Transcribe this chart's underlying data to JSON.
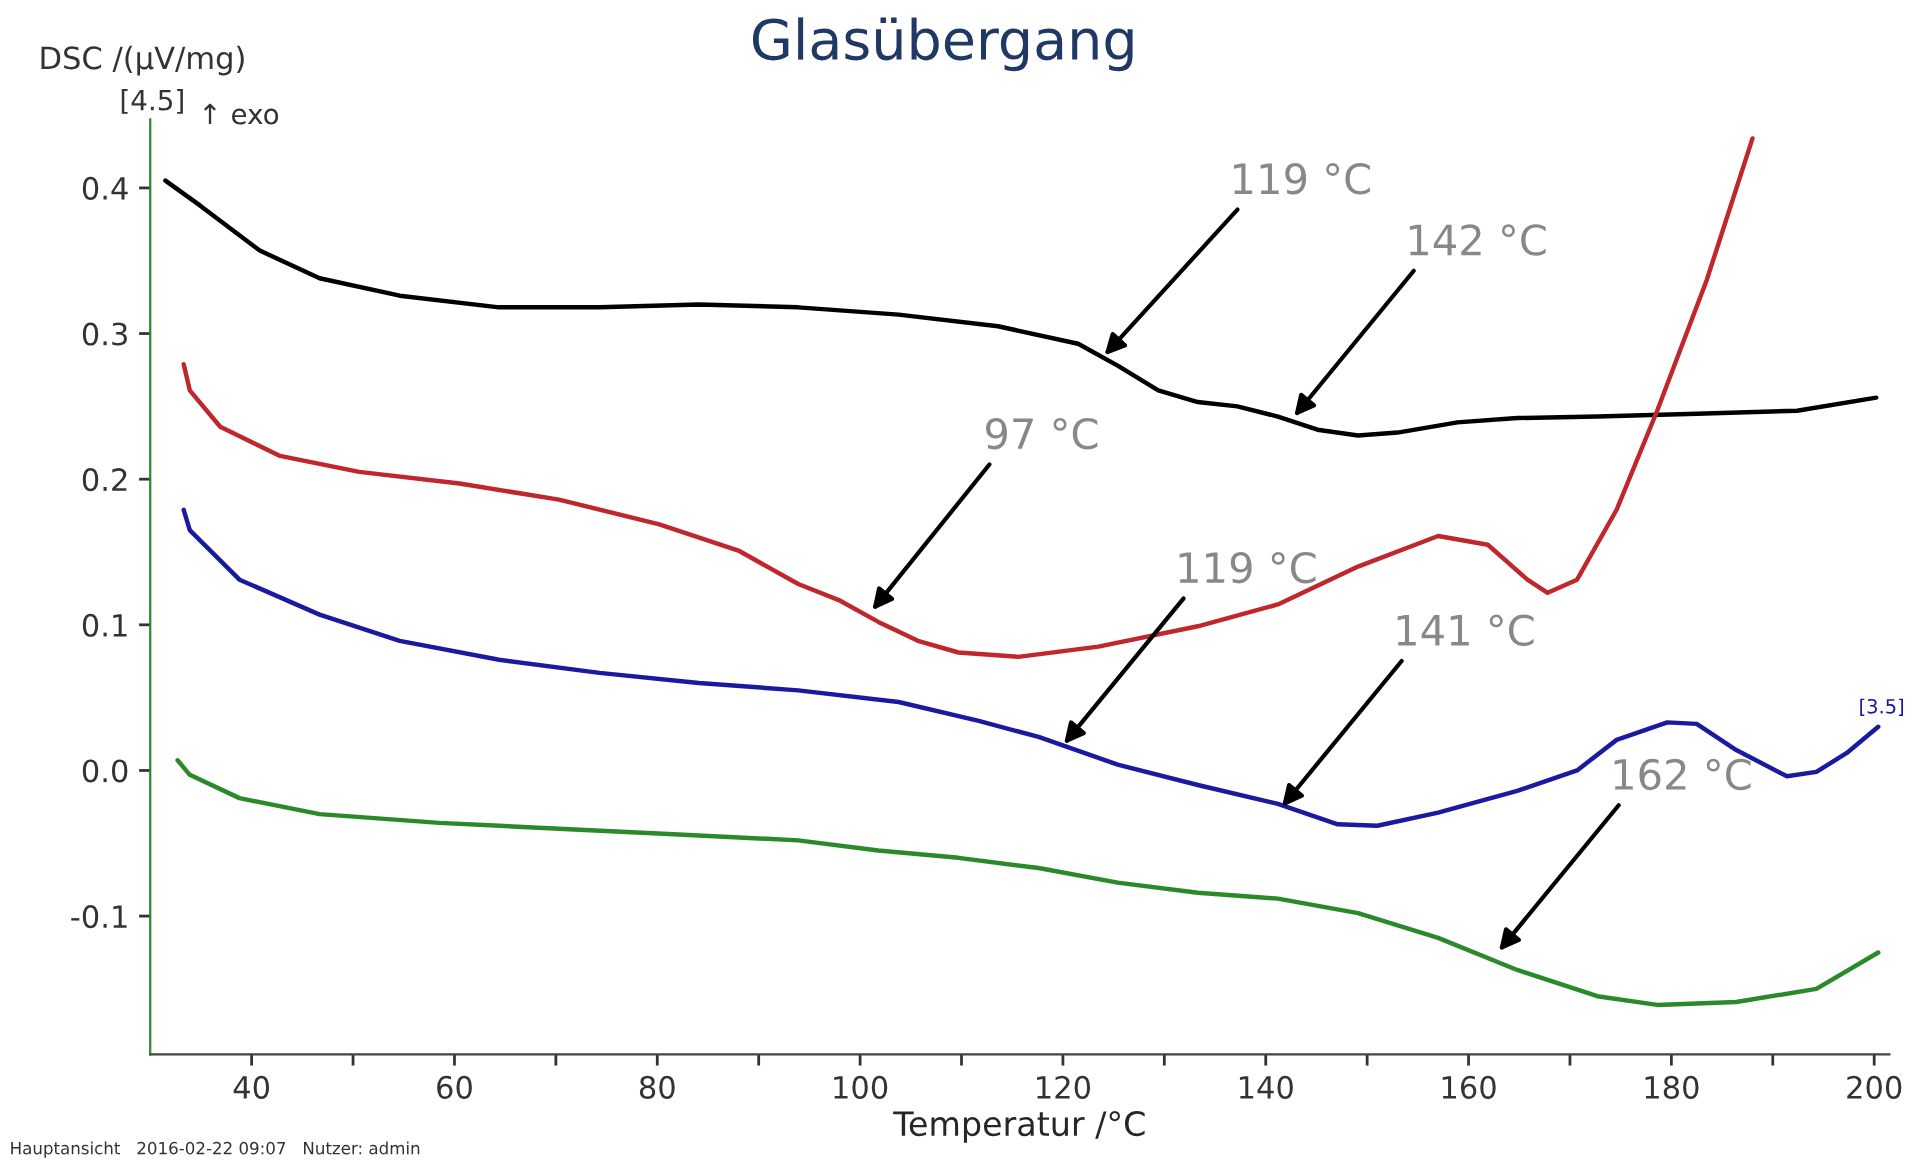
{
  "chart_data": {
    "type": "line",
    "title": "Glasübergang",
    "xlabel": "Temperatur /°C",
    "ylabel": "DSC /(µV/mg)",
    "xlim": [
      30,
      201.5
    ],
    "ylim": [
      -0.195,
      0.447
    ],
    "xticks": [
      40,
      {
        "value": 50,
        "label": null
      },
      60,
      {
        "value": 70,
        "label": null
      },
      80,
      {
        "value": 90,
        "label": null
      },
      100,
      {
        "value": 110,
        "label": null
      },
      120,
      {
        "value": 130,
        "label": null
      },
      140,
      {
        "value": 150,
        "label": null
      },
      160,
      {
        "value": 170,
        "label": null
      },
      180,
      {
        "value": 190,
        "label": null
      },
      200
    ],
    "yticks": [
      {
        "value": -0.1,
        "label": "-0.1"
      },
      {
        "value": 0.0,
        "label": "0.0"
      },
      0.1,
      0.2,
      0.3,
      0.4
    ],
    "grid": false,
    "legend": false,
    "marker": "none",
    "line_style": "solid",
    "series": [
      {
        "color": "#000000",
        "x": [
          31.5,
          34.9,
          40.8,
          46.7,
          54.6,
          64.4,
          74.3,
          84.1,
          93.9,
          103.8,
          113.6,
          121.5,
          125.4,
          129.4,
          133.3,
          137.2,
          141.2,
          145.1,
          149.1,
          153.0,
          158.9,
          164.8,
          172.7,
          182.5,
          192.4,
          200.2
        ],
        "values": [
          0.405,
          0.388,
          0.357,
          0.338,
          0.326,
          0.318,
          0.318,
          0.32,
          0.318,
          0.313,
          0.305,
          0.293,
          0.278,
          0.261,
          0.253,
          0.25,
          0.243,
          0.234,
          0.23,
          0.232,
          0.239,
          0.242,
          0.243,
          0.245,
          0.247,
          0.256
        ]
      },
      {
        "color": "#c0272d",
        "x": [
          33.3,
          33.9,
          36.9,
          42.8,
          50.6,
          60.5,
          70.3,
          80.2,
          88.0,
          93.9,
          97.9,
          101.8,
          105.7,
          109.7,
          115.6,
          123.5,
          133.3,
          141.2,
          149.1,
          157.0,
          161.9,
          165.8,
          167.8,
          170.7,
          174.6,
          178.6,
          183.5,
          188.0
        ],
        "values": [
          0.279,
          0.261,
          0.236,
          0.216,
          0.205,
          0.197,
          0.186,
          0.169,
          0.151,
          0.128,
          0.117,
          0.102,
          0.089,
          0.081,
          0.078,
          0.085,
          0.099,
          0.114,
          0.14,
          0.161,
          0.155,
          0.131,
          0.122,
          0.131,
          0.179,
          0.247,
          0.337,
          0.434
        ]
      },
      {
        "color": "#1a1aa0",
        "x": [
          33.3,
          33.9,
          38.8,
          46.7,
          54.6,
          64.4,
          74.3,
          84.1,
          93.9,
          103.8,
          111.7,
          117.6,
          125.4,
          133.3,
          141.2,
          147.1,
          151.0,
          157.0,
          164.8,
          170.7,
          174.6,
          179.6,
          182.5,
          186.4,
          191.4,
          194.3,
          197.3,
          200.4
        ],
        "values": [
          0.179,
          0.165,
          0.131,
          0.107,
          0.089,
          0.076,
          0.067,
          0.06,
          0.055,
          0.047,
          0.034,
          0.023,
          0.004,
          -0.01,
          -0.023,
          -0.037,
          -0.038,
          -0.029,
          -0.014,
          0.0,
          0.021,
          0.033,
          0.032,
          0.014,
          -0.004,
          -0.001,
          0.012,
          0.03
        ]
      },
      {
        "color": "#2a8a2a",
        "x": [
          32.7,
          33.9,
          38.8,
          46.7,
          58.5,
          70.3,
          82.1,
          93.9,
          101.8,
          109.7,
          117.6,
          125.4,
          133.3,
          141.2,
          149.1,
          157.0,
          164.8,
          172.7,
          178.6,
          186.4,
          194.3,
          200.4
        ],
        "values": [
          0.007,
          -0.003,
          -0.019,
          -0.03,
          -0.036,
          -0.04,
          -0.044,
          -0.048,
          -0.055,
          -0.06,
          -0.067,
          -0.077,
          -0.084,
          -0.088,
          -0.098,
          -0.115,
          -0.137,
          -0.155,
          -0.161,
          -0.159,
          -0.15,
          -0.125
        ]
      }
    ],
    "annotations": [
      {
        "text": "119 °C",
        "x": 124.1,
        "y": 0.285
      },
      {
        "text": "142 °C",
        "x": 142.8,
        "y": 0.243
      },
      {
        "text": "97 °C",
        "x": 101.2,
        "y": 0.11
      },
      {
        "text": "119 °C",
        "x": 120.1,
        "y": 0.018
      },
      {
        "text": "141 °C",
        "x": 141.6,
        "y": -0.025
      },
      {
        "text": "162 °C",
        "x": 163.0,
        "y": -0.124
      },
      "[4.5]",
      "↑ exo",
      "[3.5]",
      "Hauptansicht   2016-02-22 09:07   Nutzer: admin"
    ]
  }
}
